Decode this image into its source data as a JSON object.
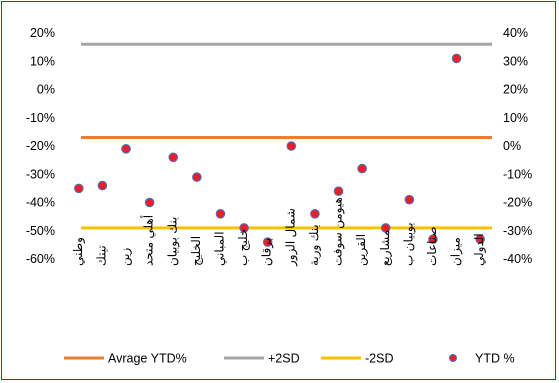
{
  "chart_data": {
    "type": "scatter",
    "title": "",
    "categories": [
      "وطني",
      "تيتك",
      "زين",
      "أهلي متحد",
      "بنك بوبيان",
      "الخليج",
      "المباني",
      "خليج ب",
      "برقان",
      "شمال الزور",
      "بنك وربة",
      "هيومن سوفت",
      "القرين",
      "مشاريع",
      "بوبيان ب",
      "صناعات",
      "ميزان",
      "الدولي"
    ],
    "left_axis": {
      "ylim": [
        -60,
        20
      ],
      "ticks": [
        20,
        10,
        0,
        -10,
        -20,
        -30,
        -40,
        -50,
        -60
      ],
      "tick_labels": [
        "20%",
        "10%",
        "0%",
        "-10%",
        "-20%",
        "-30%",
        "-40%",
        "-50%",
        "-60%"
      ]
    },
    "right_axis": {
      "ylim": [
        -40,
        40
      ],
      "ticks": [
        40,
        30,
        20,
        10,
        0,
        -10,
        -20,
        -30,
        -40
      ],
      "tick_labels": [
        "40%",
        "30%",
        "20%",
        "10%",
        "0%",
        "-10%",
        "-20%",
        "-30%",
        "-40%"
      ]
    },
    "series": [
      {
        "name": "Avrage YTD%",
        "kind": "hline",
        "value": -17,
        "color": "#ed7d31"
      },
      {
        "name": "+2SD",
        "kind": "hline",
        "value": 16,
        "color": "#a5a5a5"
      },
      {
        "name": "-2SD",
        "kind": "hline",
        "value": -49,
        "color": "#ffc000"
      },
      {
        "name": "YTD %",
        "kind": "points",
        "color": "#e8202a",
        "edge": "#4472c4",
        "values": [
          -35,
          -34,
          -21,
          -40,
          -24,
          -31,
          -44,
          -49,
          -54,
          -20,
          -44,
          -36,
          -28,
          -49,
          -39,
          -53,
          11,
          -53
        ]
      }
    ],
    "legend": {
      "position": "bottom",
      "entries": [
        "Avrage YTD%",
        "+2SD",
        "-2SD",
        "YTD %"
      ]
    },
    "grid": false
  }
}
